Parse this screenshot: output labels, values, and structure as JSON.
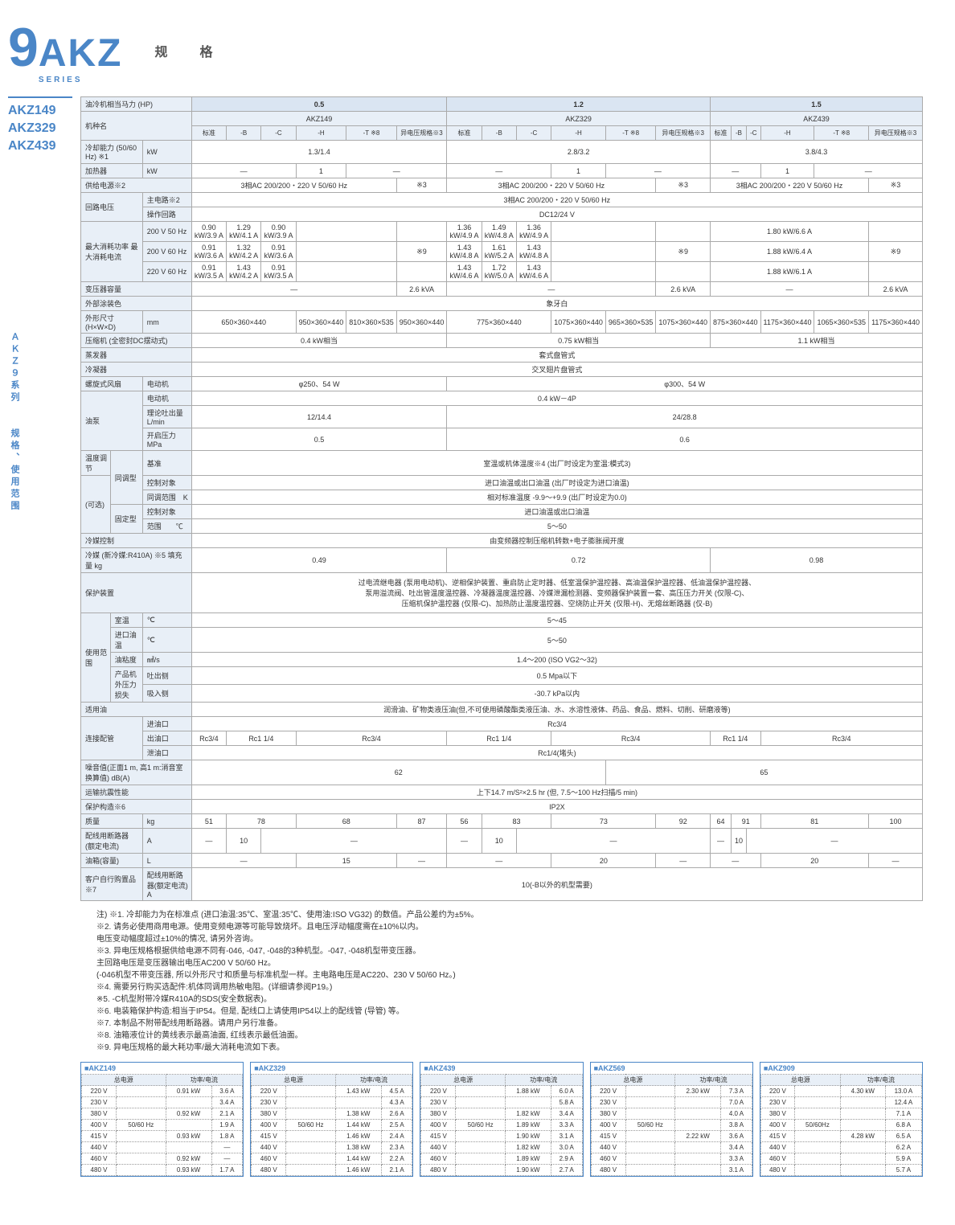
{
  "header": {
    "gauge": "规",
    "spec": "格"
  },
  "logo": {
    "akz": "AKZ",
    "series": "SERIES"
  },
  "models": [
    "AKZ149",
    "AKZ329",
    "AKZ439"
  ],
  "side_label": "ＡＫＺ９系列　　规格、使用范围",
  "main_table": {
    "header_groups": [
      {
        "hp": "0.5",
        "model": "AKZ149"
      },
      {
        "hp": "1.2",
        "model": "AKZ329"
      },
      {
        "hp": "1.5",
        "model": "AKZ439"
      }
    ],
    "sub_cols": [
      "标准",
      "-B",
      "-C",
      "-H",
      "-T ※8",
      "异电压规格※3"
    ],
    "rows": {
      "r1": {
        "label": "油冷机相当马力 (HP)"
      },
      "r2": {
        "label": "机种名"
      },
      "r3": {
        "label": "冷却能力 (50/60 Hz) ※1",
        "unit": "kW",
        "v": [
          "1.3/1.4",
          "2.8/3.2",
          "3.8/4.3"
        ]
      },
      "r4": {
        "label": "加热器",
        "unit": "kW",
        "v": [
          "—",
          "1",
          "—",
          "—",
          "1",
          "—",
          "—",
          "1",
          "—"
        ]
      },
      "r5": {
        "label": "供给电源※2",
        "v": "3相AC 200/200・220 V 50/60 Hz",
        "note": "※3"
      },
      "r6": {
        "label": "回路电压",
        "sub1": "主电路※2",
        "v1": "3相AC 200/200・220 V 50/60 Hz"
      },
      "r7": {
        "sub2": "操作回路",
        "v2": "DC12/24 V"
      },
      "r8": {
        "label": "最大消耗功率\n最大消耗电流",
        "s1": "200 V 50 Hz",
        "a1": [
          "0.90 kW/3.9 A",
          "1.29 kW/4.1 A",
          "0.90 kW/3.9 A"
        ],
        "b1": [
          "1.36 kW/4.9 A",
          "1.49 kW/4.8 A",
          "1.36 kW/4.9 A"
        ],
        "c1": "1.80 kW/6.6 A"
      },
      "r9": {
        "s2": "200 V 60 Hz",
        "a2": [
          "0.91 kW/3.6 A",
          "1.32 kW/4.2 A",
          "0.91 kW/3.6 A"
        ],
        "b2": [
          "1.43 kW/4.8 A",
          "1.61 kW/5.2 A",
          "1.43 kW/4.8 A"
        ],
        "c2": "1.88 kW/6.4 A",
        "note": "※9"
      },
      "r10": {
        "s3": "220 V 60 Hz",
        "a3": [
          "0.91 kW/3.5 A",
          "1.43 kW/4.2 A",
          "0.91 kW/3.5 A"
        ],
        "b3": [
          "1.43 kW/4.6 A",
          "1.72 kW/5.0 A",
          "1.43 kW/4.6 A"
        ],
        "c3": "1.88 kW/6.1 A"
      },
      "r11": {
        "label": "变压器容量",
        "v": [
          "—",
          "2.6 kVA",
          "—",
          "2.6 kVA",
          "—",
          "2.6 kVA"
        ]
      },
      "r12": {
        "label": "外部涂装色",
        "v": "象牙白"
      },
      "r13": {
        "label": "外形尺寸 (H×W×D)",
        "unit": "mm",
        "v": [
          "650×360×440",
          "950×360×440",
          "810×360×535",
          "950×360×440",
          "775×360×440",
          "1075×360×440",
          "965×360×535",
          "1075×360×440",
          "875×360×440",
          "1175×360×440",
          "1065×360×535",
          "1175×360×440"
        ]
      },
      "r14": {
        "label": "压缩机 (全密封DC摆动式)",
        "v": [
          "0.4 kW相当",
          "0.75 kW相当",
          "1.1 kW相当"
        ]
      },
      "r15": {
        "label": "蒸发器",
        "v": "套式盘管式"
      },
      "r16": {
        "label": "冷凝器",
        "v": "交叉翅片盘管式"
      },
      "r17": {
        "label": "螺旋式风扇",
        "sub": "电动机",
        "v": [
          "φ250、54 W",
          "φ300、54 W"
        ]
      },
      "r18": {
        "label": "油泵",
        "s1": "电动机",
        "v1": "0.4 kW－4P"
      },
      "r19": {
        "s2": "理论吐出量 L/min",
        "v2": [
          "12/14.4",
          "24/28.8"
        ]
      },
      "r20": {
        "s3": "开启压力 MPa",
        "v3": [
          "0.5",
          "0.6"
        ]
      },
      "r21": {
        "label": "温度调节",
        "s1": "同调型",
        "ss1": "基准",
        "v1": "室温或机体温度※4 (出厂时设定为室温:模式3)"
      },
      "r22": {
        "label": "(可选)",
        "ss2": "控制对象",
        "v2": "进口油温或出口油温 (出厂时设定为进口油温)"
      },
      "r23": {
        "ss3": "同调范围　K",
        "v3": "相对标准温度 -9.9～+9.9 (出厂时设定为0.0)"
      },
      "r24": {
        "s2": "固定型",
        "ss4": "控制对象",
        "v4": "进口油温或出口油温"
      },
      "r25": {
        "ss5": "范围　　℃",
        "v5": "5～50"
      },
      "r26": {
        "label": "冷媒控制",
        "v": "由变频器控制压缩机转数+电子膨胀阀开度"
      },
      "r27": {
        "label": "冷媒 (新冷媒:R410A) ※5 填充量 kg",
        "v": [
          "0.49",
          "0.72",
          "0.98"
        ]
      },
      "r28": {
        "label": "保护装置",
        "v": "过电流继电器 (泵用电动机)、逆相保护装置、重启防止定时器、低室温保护温控器、高油温保护温控器、低油温保护温控器、\n泵用溢流阀、吐出管温度温控器、冷凝器温度温控器、冷媒泄漏检测器、变频器保护装置一套、高压压力开关 (仅限-C)、\n压缩机保护温控器 (仅限-C)、加热防止温度温控器、空烧防止开关 (仅限-H)、无熔丝断路器 (仅-B)"
      },
      "r29": {
        "label": "使用范围",
        "s1": "室温",
        "unit": "℃",
        "v1": "5～45"
      },
      "r30": {
        "s2": "进口油温",
        "unit": "℃",
        "v2": "5～50"
      },
      "r31": {
        "s3": "油粘度",
        "unit": "㎟/s",
        "v3": "1.4～200 (ISO VG2～32)"
      },
      "r32": {
        "s4": "产品机外压力损失",
        "ss1": "吐出侧",
        "v4": "0.5 Mpa以下"
      },
      "r33": {
        "ss2": "吸入侧",
        "v5": "-30.7 kPa以内"
      },
      "r34": {
        "label": "适用油",
        "v": "润滑油、矿物类液压油(但,不可使用磷酸酯类液压油、水、水溶性液体、药品、食品、燃料、切削、研磨液等)"
      },
      "r35": {
        "label": "连接配管",
        "s1": "进油口",
        "v1": "Rc3/4"
      },
      "r36": {
        "s2": "出油口",
        "v2": [
          "Rc3/4",
          "Rc1 1/4",
          "Rc3/4",
          "Rc1 1/4",
          "Rc3/4",
          "Rc1 1/4",
          "Rc3/4"
        ]
      },
      "r37": {
        "s3": "泄油口",
        "v3": "Rc1/4(堵头)"
      },
      "r38": {
        "label": "噪音值(正面1 m, 高1 m:消音室换算值) dB(A)",
        "v": [
          "62",
          "65"
        ]
      },
      "r39": {
        "label": "运输抗震性能",
        "v": "上下14.7 m/S²×2.5 hr (但, 7.5～100 Hz扫描/5 min)"
      },
      "r40": {
        "label": "保护构造※6",
        "v": "IP2X"
      },
      "r41": {
        "label": "质量",
        "unit": "kg",
        "v": [
          "51",
          "78",
          "68",
          "87",
          "56",
          "83",
          "73",
          "92",
          "64",
          "91",
          "81",
          "100"
        ]
      },
      "r42": {
        "label": "配线用断路器 (额定电流)",
        "unit": "A",
        "v": [
          "—",
          "10",
          "—",
          "—",
          "10",
          "—",
          "—",
          "10",
          "—"
        ]
      },
      "r43": {
        "label": "油箱(容量)",
        "unit": "L",
        "v": [
          "—",
          "15",
          "—",
          "20",
          "—",
          "20",
          "—"
        ]
      },
      "r44": {
        "label": "客户自行购置品※7",
        "sub": "配线用断路器(额定电流)　A",
        "v": "10(-B以外的机型需要)"
      }
    }
  },
  "notes": [
    "注) ※1. 冷却能力为在标准点 (进口油温:35℃、室温:35℃、使用油:ISO VG32) 的数值。产品公差约为±5%。",
    "※2. 请务必使用商用电源。使用变频电源等可能导致烧坏。且电压浮动幅度需在±10%以内。",
    "电压变动幅度超过±10%的情况, 请另外咨询。",
    "※3. 异电压规格根据供给电源不同有-046, -047, -048的3种机型。-047, -048机型带变压器。",
    "主回路电压是变压器输出电压AC200 V 50/60 Hz。",
    "(-046机型不带变压器, 所以外形尺寸和质量与标准机型一样。主电路电压是AC220、230 V 50/60 Hz。)",
    "※4. 需要另行购买选配件:机体同调用热敏电阻。(详细请参阅P19。)",
    "※5. -C机型附带冷媒R410A的SDS(安全数据表)。",
    "※6. 电装箱保护构造:相当于IP54。但是, 配线口上请使用IP54以上的配线管 (导管) 等。",
    "※7. 本制品不附带配线用断路器。请用户另行准备。",
    "※8. 油箱液位计的黄线表示最高油面, 红线表示最低油面。",
    "※9. 异电压规格的最大耗功率/最大消耗电流如下表。"
  ],
  "bottom_tables": [
    {
      "title": "■AKZ149",
      "h": [
        "总电源",
        "功率/电流"
      ],
      "rows": [
        [
          "220 V",
          "",
          "0.91 kW",
          "3.6 A"
        ],
        [
          "230 V",
          "",
          "",
          "3.4 A"
        ],
        [
          "380 V",
          "",
          "0.92 kW",
          "2.1 A"
        ],
        [
          "400 V",
          "50/60 Hz",
          "",
          "1.9 A"
        ],
        [
          "415 V",
          "",
          "0.93 kW",
          "1.8 A"
        ],
        [
          "440 V",
          "",
          "",
          "—"
        ],
        [
          "460 V",
          "",
          "0.92 kW",
          "—"
        ],
        [
          "480 V",
          "",
          "0.93 kW",
          "1.7 A"
        ]
      ]
    },
    {
      "title": "■AKZ329",
      "h": [
        "总电源",
        "功率/电流"
      ],
      "rows": [
        [
          "220 V",
          "",
          "1.43 kW",
          "4.5 A"
        ],
        [
          "230 V",
          "",
          "",
          "4.3 A"
        ],
        [
          "380 V",
          "",
          "1.38 kW",
          "2.6 A"
        ],
        [
          "400 V",
          "50/60 Hz",
          "1.44 kW",
          "2.5 A"
        ],
        [
          "415 V",
          "",
          "1.46 kW",
          "2.4 A"
        ],
        [
          "440 V",
          "",
          "1.38 kW",
          "2.3 A"
        ],
        [
          "460 V",
          "",
          "1.44 kW",
          "2.2 A"
        ],
        [
          "480 V",
          "",
          "1.46 kW",
          "2.1 A"
        ]
      ]
    },
    {
      "title": "■AKZ439",
      "h": [
        "总电源",
        "功率/电流"
      ],
      "rows": [
        [
          "220 V",
          "",
          "1.88 kW",
          "6.0 A"
        ],
        [
          "230 V",
          "",
          "",
          "5.8 A"
        ],
        [
          "380 V",
          "",
          "1.82 kW",
          "3.4 A"
        ],
        [
          "400 V",
          "50/60 Hz",
          "1.89 kW",
          "3.3 A"
        ],
        [
          "415 V",
          "",
          "1.90 kW",
          "3.1 A"
        ],
        [
          "440 V",
          "",
          "1.82 kW",
          "3.0 A"
        ],
        [
          "460 V",
          "",
          "1.89 kW",
          "2.9 A"
        ],
        [
          "480 V",
          "",
          "1.90 kW",
          "2.7 A"
        ]
      ]
    },
    {
      "title": "■AKZ569",
      "h": [
        "总电源",
        "功率/电流"
      ],
      "rows": [
        [
          "220 V",
          "",
          "2.30 kW",
          "7.3 A"
        ],
        [
          "230 V",
          "",
          "",
          "7.0 A"
        ],
        [
          "380 V",
          "",
          "",
          "4.0 A"
        ],
        [
          "400 V",
          "50/60 Hz",
          "",
          "3.8 A"
        ],
        [
          "415 V",
          "",
          "2.22 kW",
          "3.6 A"
        ],
        [
          "440 V",
          "",
          "",
          "3.4 A"
        ],
        [
          "460 V",
          "",
          "",
          "3.3 A"
        ],
        [
          "480 V",
          "",
          "",
          "3.1 A"
        ]
      ]
    },
    {
      "title": "■AKZ909",
      "h": [
        "总电源",
        "功率/电流"
      ],
      "rows": [
        [
          "220 V",
          "",
          "4.30 kW",
          "13.0 A"
        ],
        [
          "230 V",
          "",
          "",
          "12.4 A"
        ],
        [
          "380 V",
          "",
          "",
          "7.1 A"
        ],
        [
          "400 V",
          "50/60Hz",
          "",
          "6.8 A"
        ],
        [
          "415 V",
          "",
          "4.28 kW",
          "6.5 A"
        ],
        [
          "440 V",
          "",
          "",
          "6.2 A"
        ],
        [
          "460 V",
          "",
          "",
          "5.9 A"
        ],
        [
          "480 V",
          "",
          "",
          "5.7 A"
        ]
      ]
    }
  ]
}
